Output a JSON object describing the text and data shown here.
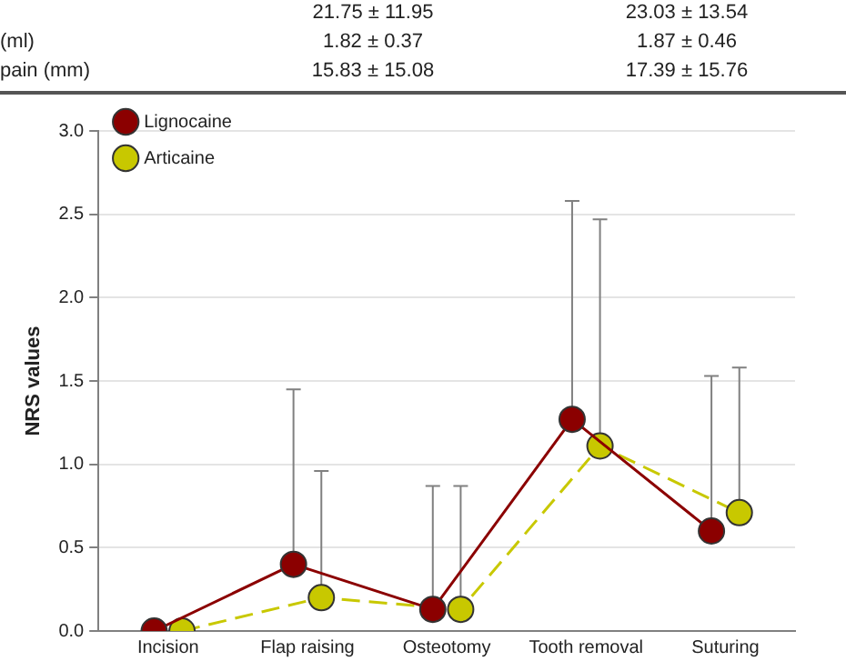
{
  "chart_data": {
    "type": "line",
    "ylabel": "NRS values",
    "categories": [
      "Incision",
      "Flap raising",
      "Osteotomy",
      "Tooth removal",
      "Suturing"
    ],
    "series": [
      {
        "name": "Lignocaine",
        "color": "#8b0000",
        "values": [
          0,
          0.4,
          0.13,
          1.27,
          0.6
        ],
        "errors": [
          null,
          [
            0.4,
            1.45
          ],
          [
            0.13,
            0.87
          ],
          [
            1.27,
            2.58
          ],
          [
            0.6,
            1.53
          ]
        ],
        "line_style": "solid"
      },
      {
        "name": "Articaine",
        "color": "#c8c800",
        "values": [
          0,
          0.2,
          0.13,
          1.11,
          0.71
        ],
        "errors": [
          null,
          [
            0.2,
            0.96
          ],
          [
            0.13,
            0.87
          ],
          [
            1.11,
            2.47
          ],
          [
            0.71,
            1.58
          ]
        ],
        "line_style": "dashed"
      }
    ],
    "ylim": [
      0,
      3
    ],
    "yticks": [
      {
        "value": 0,
        "label": "0.0"
      },
      {
        "value": 0.5,
        "label": "0.5"
      },
      {
        "value": 1,
        "label": "1.0"
      },
      {
        "value": 1.5,
        "label": "1.5"
      },
      {
        "value": 2,
        "label": "2.0"
      },
      {
        "value": 2.5,
        "label": "2.5"
      },
      {
        "value": 3,
        "label": "3.0"
      }
    ],
    "grid": "y",
    "legend": "top left",
    "marker": "circle",
    "annotations": [
      "21.75 ± 11.95",
      "23.03 ± 13.54",
      "(ml)",
      "1.82 ± 0.37",
      "1.87 ± 0.46",
      "pain (mm)",
      "15.83 ± 15.08",
      "17.39 ± 15.76"
    ]
  }
}
